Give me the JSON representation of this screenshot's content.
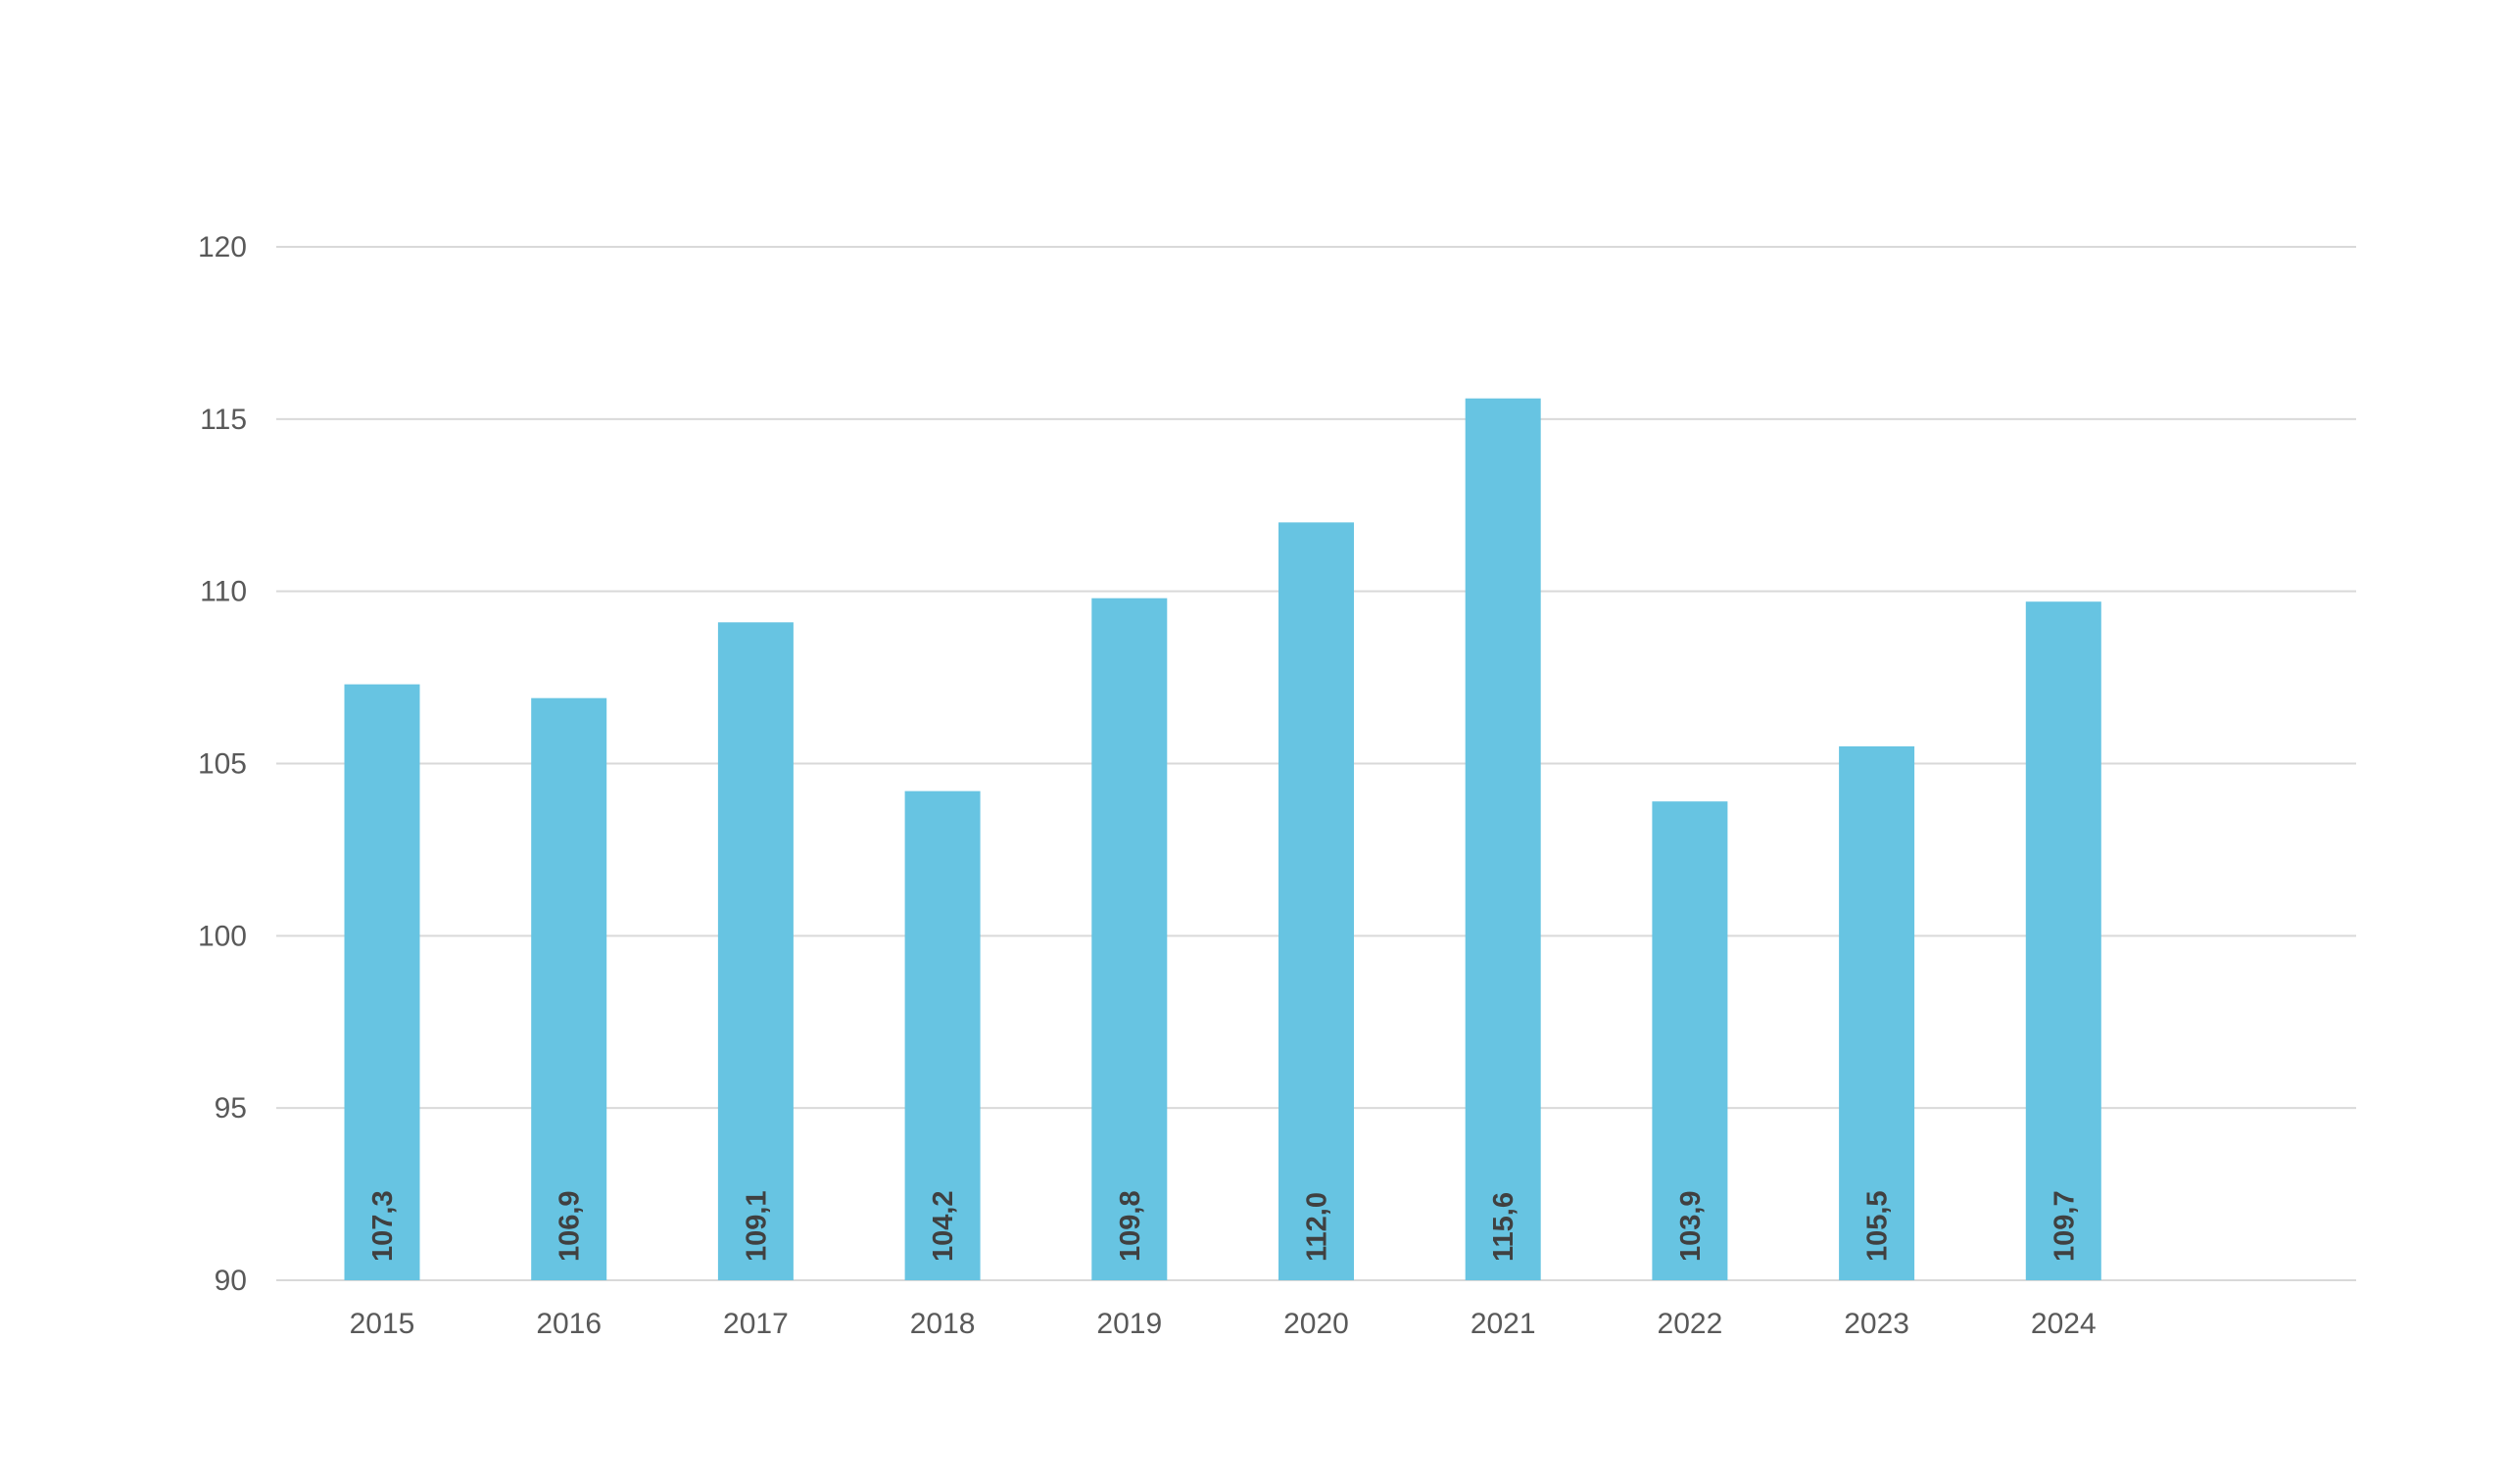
{
  "chart_data": {
    "type": "bar",
    "title": "",
    "xlabel": "",
    "ylabel": "",
    "categories": [
      "2015",
      "2016",
      "2017",
      "2018",
      "2019",
      "2020",
      "2021",
      "2022",
      "2023",
      "2024"
    ],
    "series": [
      {
        "values": [
          107.3,
          106.9,
          109.1,
          104.2,
          109.8,
          112.0,
          115.6,
          103.9,
          105.5,
          109.7
        ],
        "data_labels": [
          "107,3",
          "106,9",
          "109,1",
          "104,2",
          "109,8",
          "112,0",
          "115,6",
          "103,9",
          "105,5",
          "109,7"
        ],
        "color": "#67c4e2"
      }
    ],
    "ylim": [
      90,
      120
    ],
    "yticks": [
      90,
      95,
      100,
      105,
      110,
      115,
      120
    ],
    "ytick_labels": [
      "90",
      "95",
      "100",
      "105",
      "110",
      "115",
      "120"
    ],
    "grid": true,
    "gridline_color": "#d9d9d9",
    "legend": "none",
    "data_label_orientation": "vertical",
    "data_label_position": "inside-base"
  }
}
